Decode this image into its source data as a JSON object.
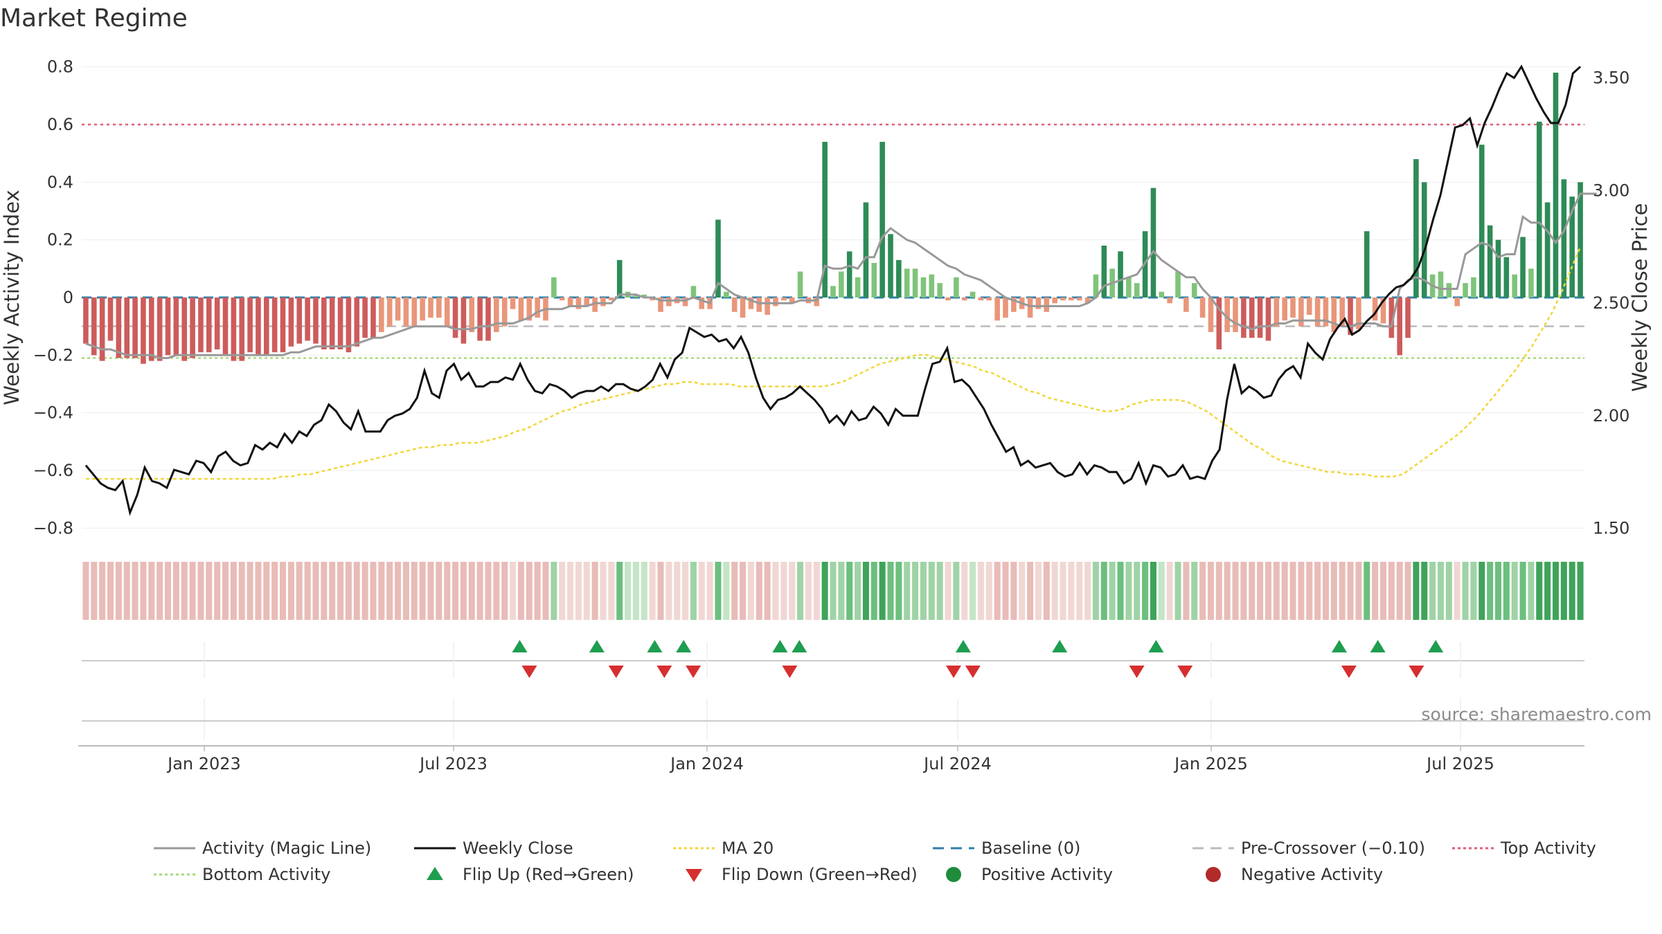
{
  "chart_data": {
    "type": "bar",
    "title": "Market Regime",
    "ylabel": "Weekly Activity Index",
    "ylabel_right": "Weekly Close Price",
    "ylim": [
      -0.84,
      0.84
    ],
    "ylim_right": [
      1.45,
      3.6
    ],
    "yticks": [
      -0.8,
      -0.6,
      -0.4,
      -0.2,
      0,
      0.2,
      0.4,
      0.6,
      0.8
    ],
    "ytick_labels": [
      "−0.8",
      "−0.6",
      "−0.4",
      "−0.2",
      "0",
      "0.2",
      "0.4",
      "0.6",
      "0.8"
    ],
    "yticks_right": [
      1.5,
      2.0,
      2.5,
      3.0,
      3.5
    ],
    "ytick_labels_right": [
      "1.50",
      "2.00",
      "2.50",
      "3.00",
      "3.50"
    ],
    "x_start": "2022-10-07",
    "x_end": "2025-09-26",
    "xticks": [
      {
        "date": "2023-01-01",
        "label": "Jan 2023"
      },
      {
        "date": "2023-07-01",
        "label": "Jul 2023"
      },
      {
        "date": "2024-01-01",
        "label": "Jan 2024"
      },
      {
        "date": "2024-07-01",
        "label": "Jul 2024"
      },
      {
        "date": "2025-01-01",
        "label": "Jan 2025"
      },
      {
        "date": "2025-07-01",
        "label": "Jul 2025"
      }
    ],
    "source": "source: sharemaestro.com",
    "activity": [
      -0.16,
      -0.2,
      -0.22,
      -0.15,
      -0.21,
      -0.21,
      -0.21,
      -0.23,
      -0.22,
      -0.22,
      -0.2,
      -0.2,
      -0.22,
      -0.21,
      -0.19,
      -0.19,
      -0.18,
      -0.2,
      -0.22,
      -0.22,
      -0.19,
      -0.2,
      -0.2,
      -0.19,
      -0.19,
      -0.17,
      -0.16,
      -0.15,
      -0.16,
      -0.18,
      -0.18,
      -0.18,
      -0.19,
      -0.17,
      -0.14,
      -0.14,
      -0.12,
      -0.1,
      -0.08,
      -0.1,
      -0.1,
      -0.08,
      -0.07,
      -0.07,
      -0.1,
      -0.14,
      -0.16,
      -0.12,
      -0.15,
      -0.15,
      -0.12,
      -0.1,
      -0.04,
      -0.08,
      -0.08,
      -0.07,
      -0.08,
      0.07,
      -0.01,
      -0.03,
      -0.04,
      -0.03,
      -0.05,
      -0.03,
      -0.01,
      0.13,
      0.02,
      0.01,
      0.01,
      -0.01,
      -0.05,
      -0.03,
      -0.02,
      -0.03,
      0.04,
      -0.04,
      -0.04,
      0.27,
      0.02,
      -0.05,
      -0.07,
      -0.04,
      -0.05,
      -0.06,
      -0.03,
      -0.01,
      -0.02,
      0.09,
      -0.02,
      -0.03,
      0.54,
      0.04,
      0.09,
      0.16,
      0.07,
      0.33,
      0.12,
      0.54,
      0.22,
      0.13,
      0.1,
      0.1,
      0.07,
      0.08,
      0.05,
      -0.01,
      0.07,
      -0.01,
      0.02,
      -0.01,
      -0.01,
      -0.08,
      -0.07,
      -0.05,
      -0.04,
      -0.07,
      -0.04,
      -0.05,
      -0.02,
      -0.01,
      -0.01,
      -0.01,
      -0.02,
      0.08,
      0.18,
      0.1,
      0.16,
      0.07,
      0.05,
      0.23,
      0.38,
      0.02,
      -0.02,
      0.09,
      -0.05,
      0.05,
      -0.07,
      -0.12,
      -0.18,
      -0.12,
      -0.12,
      -0.14,
      -0.14,
      -0.14,
      -0.15,
      -0.1,
      -0.08,
      -0.07,
      -0.1,
      -0.06,
      -0.1,
      -0.1,
      -0.12,
      -0.1,
      -0.13,
      -0.11,
      0.23,
      -0.08,
      -0.09,
      -0.14,
      -0.2,
      -0.14,
      0.48,
      0.4,
      0.08,
      0.09,
      0.05,
      -0.03,
      0.05,
      0.07,
      0.53,
      0.25,
      0.2,
      0.14,
      0.08,
      0.21,
      0.1,
      0.61,
      0.33,
      0.78,
      0.41,
      0.35,
      0.4
    ],
    "magic_line": [
      -0.16,
      -0.17,
      -0.18,
      -0.18,
      -0.19,
      -0.2,
      -0.2,
      -0.2,
      -0.2,
      -0.21,
      -0.21,
      -0.2,
      -0.2,
      -0.2,
      -0.2,
      -0.2,
      -0.2,
      -0.2,
      -0.2,
      -0.2,
      -0.2,
      -0.2,
      -0.2,
      -0.2,
      -0.2,
      -0.19,
      -0.19,
      -0.18,
      -0.17,
      -0.17,
      -0.17,
      -0.17,
      -0.17,
      -0.16,
      -0.15,
      -0.14,
      -0.14,
      -0.13,
      -0.12,
      -0.11,
      -0.1,
      -0.1,
      -0.1,
      -0.1,
      -0.1,
      -0.11,
      -0.11,
      -0.11,
      -0.1,
      -0.1,
      -0.09,
      -0.09,
      -0.09,
      -0.08,
      -0.07,
      -0.05,
      -0.04,
      -0.04,
      -0.04,
      -0.03,
      -0.03,
      -0.03,
      -0.02,
      -0.02,
      -0.02,
      0.01,
      0.01,
      0.01,
      0.0,
      0.0,
      -0.01,
      -0.01,
      -0.01,
      -0.01,
      0.0,
      -0.01,
      -0.02,
      0.05,
      0.03,
      0.01,
      0.0,
      -0.01,
      -0.02,
      -0.02,
      -0.02,
      -0.02,
      -0.02,
      -0.01,
      -0.01,
      -0.01,
      0.11,
      0.1,
      0.1,
      0.11,
      0.1,
      0.14,
      0.14,
      0.21,
      0.24,
      0.22,
      0.2,
      0.19,
      0.17,
      0.15,
      0.13,
      0.11,
      0.1,
      0.08,
      0.07,
      0.06,
      0.04,
      0.02,
      0.0,
      -0.01,
      -0.02,
      -0.03,
      -0.03,
      -0.03,
      -0.03,
      -0.03,
      -0.03,
      -0.03,
      -0.02,
      0.0,
      0.04,
      0.05,
      0.06,
      0.07,
      0.08,
      0.12,
      0.16,
      0.13,
      0.11,
      0.09,
      0.07,
      0.07,
      0.03,
      0.0,
      -0.04,
      -0.07,
      -0.09,
      -0.1,
      -0.11,
      -0.1,
      -0.1,
      -0.09,
      -0.09,
      -0.08,
      -0.08,
      -0.08,
      -0.08,
      -0.08,
      -0.09,
      -0.1,
      -0.1,
      -0.09,
      -0.09,
      -0.09,
      -0.1,
      -0.1,
      0.03,
      0.06,
      0.07,
      0.06,
      0.04,
      0.03,
      0.03,
      0.03,
      0.15,
      0.17,
      0.19,
      0.18,
      0.14,
      0.15,
      0.15,
      0.28,
      0.26,
      0.26,
      0.23,
      0.19,
      0.23,
      0.3,
      0.36,
      0.36,
      0.36
    ],
    "weekly_close": [
      1.78,
      1.74,
      1.7,
      1.68,
      1.67,
      1.71,
      1.57,
      1.65,
      1.77,
      1.71,
      1.7,
      1.68,
      1.76,
      1.75,
      1.74,
      1.8,
      1.79,
      1.75,
      1.82,
      1.84,
      1.8,
      1.78,
      1.79,
      1.87,
      1.85,
      1.88,
      1.86,
      1.92,
      1.88,
      1.93,
      1.91,
      1.96,
      1.98,
      2.05,
      2.02,
      1.97,
      1.94,
      2.02,
      1.93,
      1.93,
      1.93,
      1.98,
      2.0,
      2.01,
      2.03,
      2.08,
      2.2,
      2.1,
      2.08,
      2.2,
      2.23,
      2.16,
      2.19,
      2.13,
      2.13,
      2.15,
      2.15,
      2.17,
      2.16,
      2.23,
      2.16,
      2.11,
      2.1,
      2.14,
      2.13,
      2.11,
      2.08,
      2.1,
      2.11,
      2.11,
      2.13,
      2.11,
      2.14,
      2.14,
      2.12,
      2.11,
      2.13,
      2.16,
      2.23,
      2.17,
      2.25,
      2.28,
      2.39,
      2.37,
      2.35,
      2.36,
      2.33,
      2.34,
      2.3,
      2.35,
      2.28,
      2.17,
      2.08,
      2.03,
      2.07,
      2.08,
      2.1,
      2.13,
      2.1,
      2.07,
      2.03,
      1.97,
      2.0,
      1.96,
      2.02,
      1.98,
      1.99,
      2.04,
      2.01,
      1.96,
      2.03,
      2.0,
      2.0,
      2.0,
      2.12,
      2.23,
      2.24,
      2.3,
      2.15,
      2.16,
      2.13,
      2.08,
      2.03,
      1.96,
      1.9,
      1.84,
      1.86,
      1.78,
      1.8,
      1.77,
      1.78,
      1.79,
      1.75,
      1.73,
      1.74,
      1.79,
      1.74,
      1.78,
      1.77,
      1.75,
      1.75,
      1.7,
      1.72,
      1.79,
      1.7,
      1.78,
      1.77,
      1.73,
      1.74,
      1.78,
      1.72,
      1.73,
      1.72,
      1.8,
      1.85,
      2.07,
      2.23,
      2.1,
      2.13,
      2.11,
      2.08,
      2.09,
      2.16,
      2.2,
      2.22,
      2.17,
      2.32,
      2.28,
      2.25,
      2.34,
      2.39,
      2.43,
      2.36,
      2.38,
      2.42,
      2.45,
      2.5,
      2.54,
      2.57,
      2.58,
      2.61,
      2.66,
      2.75,
      2.87,
      2.98,
      3.13,
      3.28,
      3.29,
      3.32,
      3.2,
      3.3,
      3.37,
      3.45,
      3.52,
      3.5,
      3.55,
      3.48,
      3.41,
      3.35,
      3.3,
      3.3,
      3.38,
      3.52,
      3.55
    ],
    "ma20": [
      1.72,
      1.72,
      1.72,
      1.72,
      1.72,
      1.72,
      1.72,
      1.72,
      1.72,
      1.72,
      1.72,
      1.72,
      1.72,
      1.72,
      1.72,
      1.72,
      1.72,
      1.72,
      1.72,
      1.72,
      1.72,
      1.73,
      1.73,
      1.74,
      1.74,
      1.75,
      1.76,
      1.77,
      1.78,
      1.79,
      1.8,
      1.81,
      1.82,
      1.83,
      1.84,
      1.85,
      1.86,
      1.86,
      1.87,
      1.87,
      1.88,
      1.88,
      1.88,
      1.89,
      1.9,
      1.91,
      1.93,
      1.94,
      1.96,
      1.98,
      2.0,
      2.02,
      2.03,
      2.05,
      2.06,
      2.07,
      2.08,
      2.09,
      2.1,
      2.11,
      2.12,
      2.13,
      2.14,
      2.14,
      2.15,
      2.15,
      2.14,
      2.14,
      2.14,
      2.14,
      2.13,
      2.13,
      2.13,
      2.13,
      2.13,
      2.13,
      2.13,
      2.13,
      2.13,
      2.13,
      2.14,
      2.15,
      2.17,
      2.19,
      2.21,
      2.23,
      2.24,
      2.25,
      2.26,
      2.27,
      2.27,
      2.26,
      2.25,
      2.24,
      2.23,
      2.22,
      2.2,
      2.19,
      2.17,
      2.15,
      2.13,
      2.11,
      2.1,
      2.08,
      2.07,
      2.06,
      2.05,
      2.04,
      2.03,
      2.02,
      2.02,
      2.03,
      2.05,
      2.06,
      2.07,
      2.07,
      2.07,
      2.07,
      2.06,
      2.04,
      2.02,
      1.99,
      1.96,
      1.93,
      1.9,
      1.87,
      1.85,
      1.82,
      1.8,
      1.79,
      1.78,
      1.77,
      1.76,
      1.75,
      1.75,
      1.74,
      1.74,
      1.74,
      1.73,
      1.73,
      1.73,
      1.74,
      1.77,
      1.8,
      1.83,
      1.86,
      1.89,
      1.92,
      1.96,
      2.0,
      2.05,
      2.1,
      2.15,
      2.2,
      2.26,
      2.32,
      2.39,
      2.46,
      2.55,
      2.65,
      2.75
    ],
    "baseline": 0,
    "pre_crossover": -0.1,
    "top_activity": 0.6,
    "bottom_activity": -0.21,
    "flip_up": [
      "2023-08-18",
      "2023-10-13",
      "2023-11-24",
      "2023-12-15",
      "2024-02-23",
      "2024-03-08",
      "2024-07-05",
      "2024-09-13",
      "2024-11-22",
      "2025-04-04",
      "2025-05-02",
      "2025-06-13"
    ],
    "flip_down": [
      "2023-08-25",
      "2023-10-27",
      "2023-12-01",
      "2023-12-22",
      "2024-03-01",
      "2024-06-28",
      "2024-07-12",
      "2024-11-08",
      "2024-12-13",
      "2025-04-11",
      "2025-05-30"
    ],
    "colors": {
      "strong_positive": "#2e8b57",
      "weak_positive": "#7fc47a",
      "strong_negative": "#cd5c5c",
      "weak_negative": "#e9967a",
      "magic_line": "#999999",
      "weekly_close": "#111111",
      "ma20": "#f2d63a",
      "baseline": "#2e7fa8",
      "pre_crossover": "#bbbbbb",
      "top_activity": "#e05f7a",
      "bottom_activity": "#a8d87a",
      "flip_up": "#1e9e4f",
      "flip_down": "#d62f2f",
      "positive_activity": "#1e8c3a",
      "negative_activity": "#b22a2a"
    },
    "legend": [
      {
        "key": "magic",
        "label": "Activity (Magic Line)",
        "kind": "line"
      },
      {
        "key": "close",
        "label": "Weekly Close",
        "kind": "line"
      },
      {
        "key": "ma20",
        "label": "MA 20",
        "kind": "dotted"
      },
      {
        "key": "baseline",
        "label": "Baseline (0)",
        "kind": "dashed"
      },
      {
        "key": "pre",
        "label": "Pre-Crossover (−0.10)",
        "kind": "dashed"
      },
      {
        "key": "top",
        "label": "Top Activity",
        "kind": "dotted"
      },
      {
        "key": "bottom",
        "label": "Bottom Activity",
        "kind": "dotted"
      },
      {
        "key": "flipup",
        "label": "Flip Up (Red→Green)",
        "kind": "tri-up"
      },
      {
        "key": "flipdown",
        "label": "Flip Down (Green→Red)",
        "kind": "tri-down"
      },
      {
        "key": "posact",
        "label": "Positive Activity",
        "kind": "circle"
      },
      {
        "key": "negact",
        "label": "Negative Activity",
        "kind": "circle"
      }
    ]
  }
}
